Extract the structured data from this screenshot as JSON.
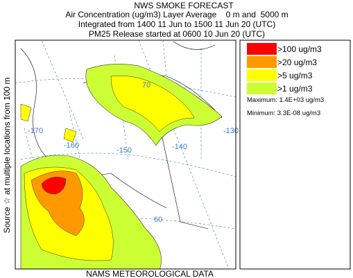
{
  "header": {
    "title": "NWS SMOKE FORECAST",
    "line1": "Air Concentration (ug/m3) Layer Average    0 m and  5000 m",
    "line2": "Integrated from 1400 11 Jun to 1500 11 Jun 20 (UTC)",
    "line3": "PM25 Release started at 0600 10 Jun 20 (UTC)"
  },
  "side_label": "Source ☆ at multiple locations from 100 m",
  "footer": "NAMS METEOROLOGICAL DATA",
  "legend": {
    "items": [
      {
        "label": ">100 ug/m3",
        "color": "#ff0000"
      },
      {
        "label": ">20 ug/m3",
        "color": "#ff9900"
      },
      {
        "label": ">5 ug/m3",
        "color": "#ffff00"
      },
      {
        "label": ">1 ug/m3",
        "color": "#ccff33"
      }
    ],
    "maximum": "Maximum: 1.4E+03 ug/m3",
    "minimum": "Minimum: 3.3E-08 ug/m3"
  },
  "map_labels": [
    "-170",
    "-160",
    "-150",
    "-140",
    "-130",
    "70",
    "60"
  ]
}
